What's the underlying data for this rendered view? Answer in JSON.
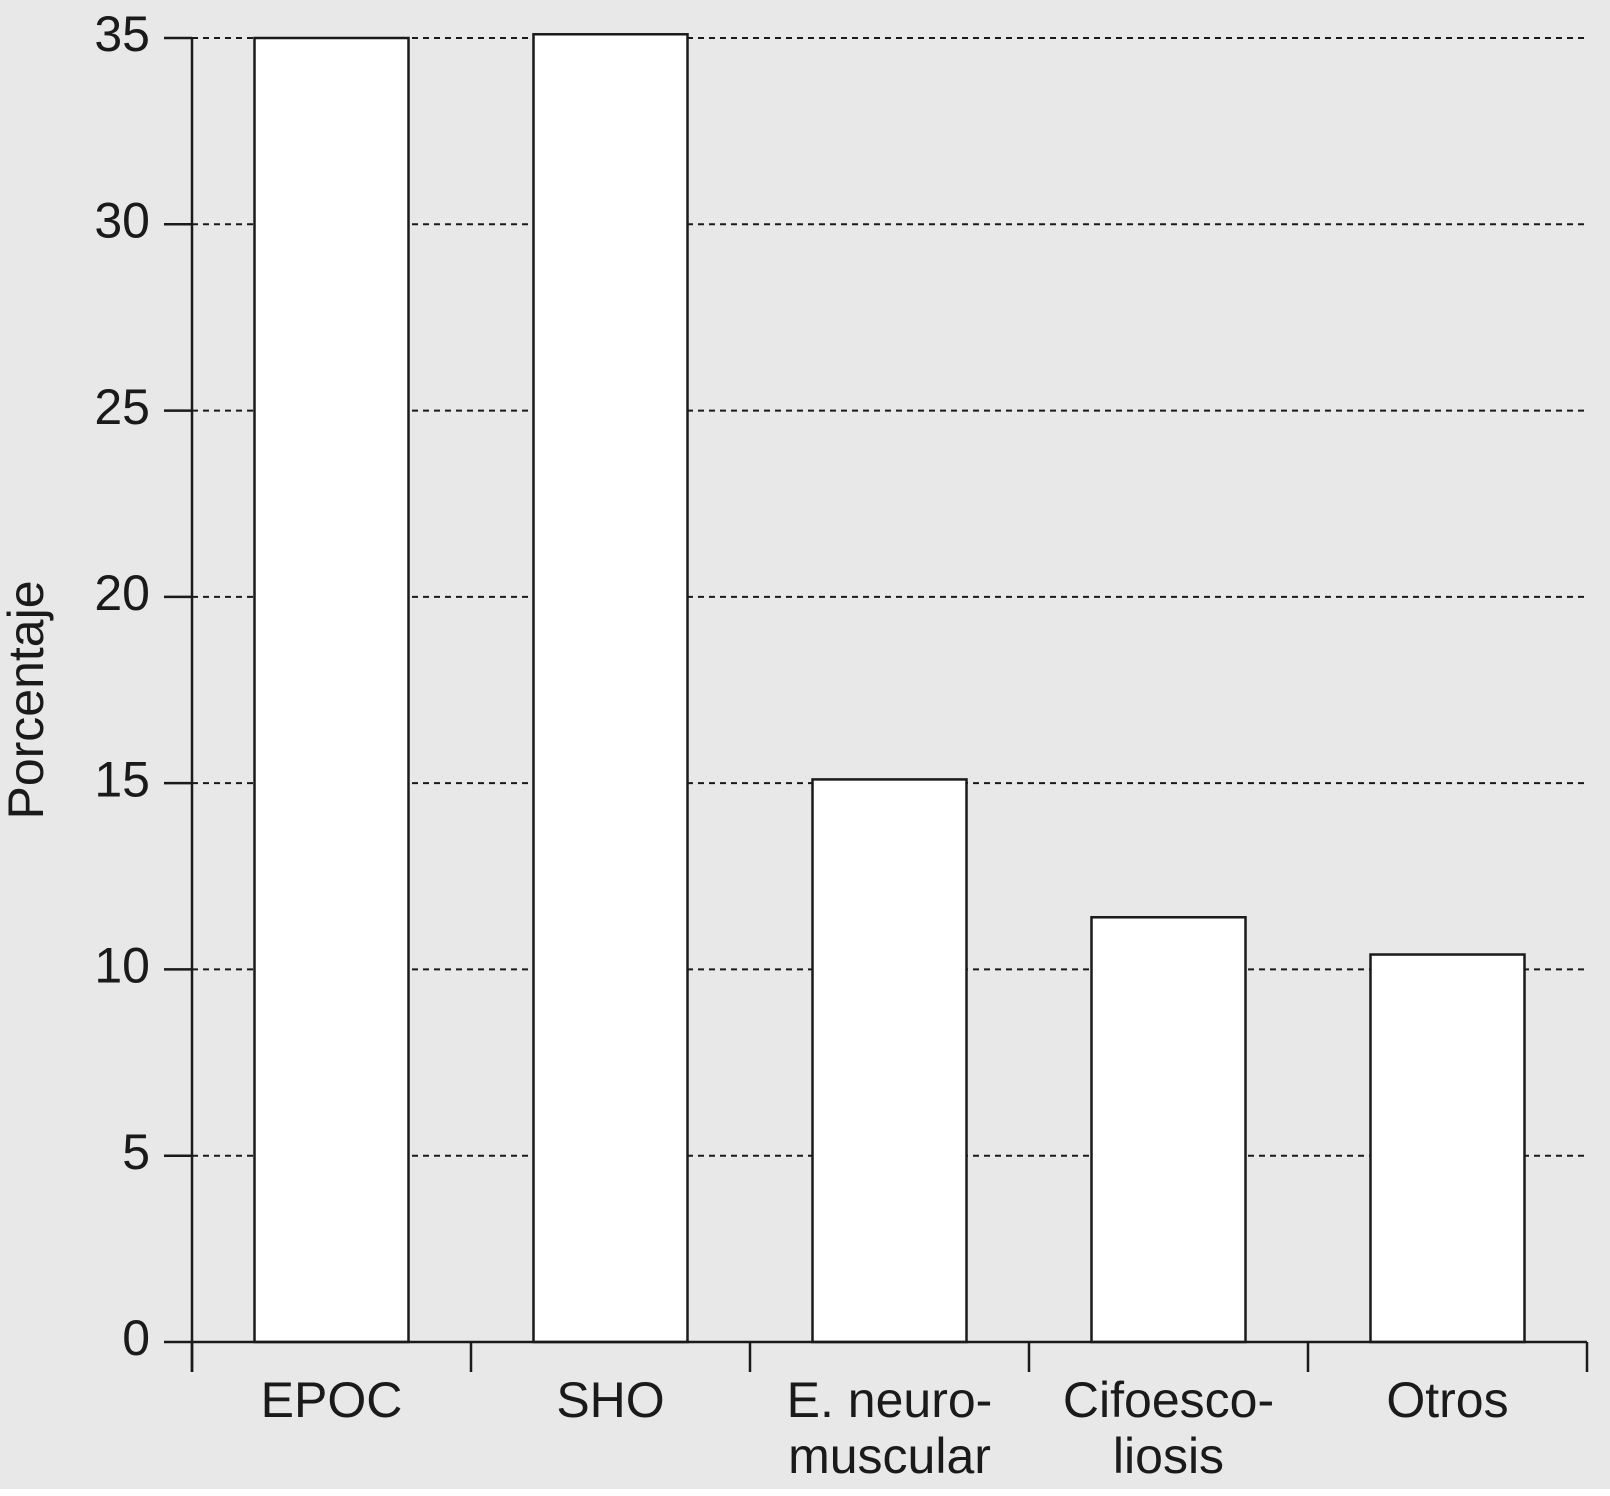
{
  "chart_data": {
    "type": "bar",
    "y_label": "Porcentaje",
    "categories": [
      "EPOC",
      "SHO",
      "E. neuro-\nmuscular",
      "Cifoesco-\nliosis",
      "Otros"
    ],
    "values": [
      35.0,
      35.1,
      15.1,
      11.4,
      10.4
    ],
    "color": "#ffffff",
    "ylim": [
      0,
      35
    ],
    "yticks": [
      0,
      5,
      10,
      15,
      20,
      25,
      30,
      35
    ],
    "grid": true
  }
}
